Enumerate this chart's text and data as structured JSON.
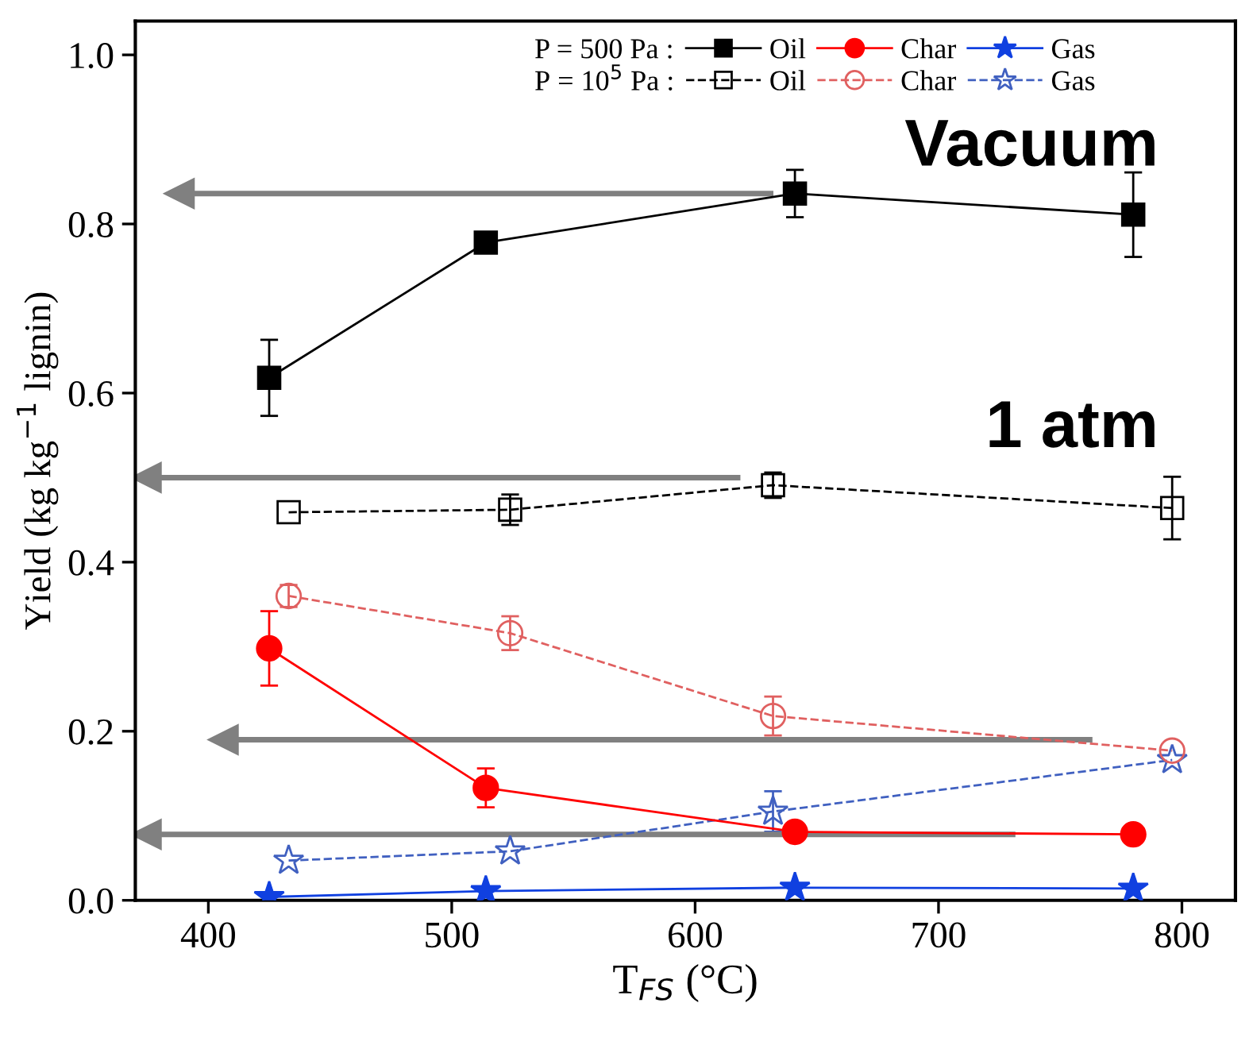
{
  "chart_data": {
    "type": "line",
    "xlabel": "T$_{FS}$ (°C)",
    "ylabel": "Yield (kg kg$^{−1}$ lignin)",
    "xlim": [
      370,
      822
    ],
    "xticks": [
      400,
      500,
      600,
      700,
      800
    ],
    "ylim": [
      0,
      1.04
    ],
    "yticks": [
      {
        "value": 0,
        "label": "0.0"
      },
      0.2,
      0.4,
      0.6,
      0.8,
      {
        "value": 1.0,
        "label": "1.0"
      }
    ],
    "grid": false,
    "legend": "top",
    "annotations": [
      "Vacuum",
      "1 atm",
      "P = 500 Pa :",
      "P = 10$^{5}$ Pa :"
    ],
    "ref_lines": [
      {
        "axis": "y",
        "value": 0.836,
        "color": "#808080"
      },
      {
        "axis": "y",
        "value": 0.5,
        "color": "#808080"
      },
      {
        "axis": "y",
        "value": 0.19,
        "color": "#808080"
      },
      {
        "axis": "y",
        "value": 0.078,
        "color": "#808080"
      }
    ],
    "series": [
      {
        "name": "Oil",
        "color": "#000000",
        "marker": "square",
        "line_style": "solid",
        "x": [
          425,
          514,
          641,
          780
        ],
        "values": [
          0.618,
          0.778,
          0.836,
          0.811
        ],
        "errors": [
          0.045,
          null,
          0.028,
          0.05
        ]
      },
      {
        "name": "Oil",
        "color": "#000000",
        "marker": "square",
        "line_style": "dashed",
        "x": [
          433,
          524,
          632,
          796
        ],
        "values": [
          0.459,
          0.462,
          0.491,
          0.464
        ],
        "errors": [
          null,
          0.018,
          0.015,
          0.037
        ]
      },
      {
        "name": "Char",
        "color": "#ff0000",
        "marker": "circle",
        "line_style": "solid",
        "x": [
          425,
          514,
          641,
          780
        ],
        "values": [
          0.298,
          0.133,
          0.081,
          0.078
        ],
        "errors": [
          0.044,
          0.023,
          null,
          null
        ]
      },
      {
        "name": "Char",
        "color": "#e06060",
        "marker": "circle",
        "line_style": "dashed",
        "x": [
          433,
          524,
          632,
          796
        ],
        "values": [
          0.36,
          0.316,
          0.218,
          0.177
        ],
        "errors": [
          0.013,
          0.02,
          0.023,
          null
        ]
      },
      {
        "name": "Gas",
        "color": "#1040e0",
        "marker": "star",
        "line_style": "solid",
        "x": [
          425,
          514,
          641,
          780
        ],
        "values": [
          0.004,
          0.011,
          0.015,
          0.014
        ],
        "errors": [
          null,
          null,
          null,
          null
        ]
      },
      {
        "name": "Gas",
        "color": "#4060c0",
        "marker": "star",
        "line_style": "dashed",
        "x": [
          433,
          524,
          632,
          796
        ],
        "values": [
          0.047,
          0.058,
          0.105,
          0.166
        ],
        "errors": [
          null,
          null,
          0.024,
          null
        ]
      }
    ]
  }
}
